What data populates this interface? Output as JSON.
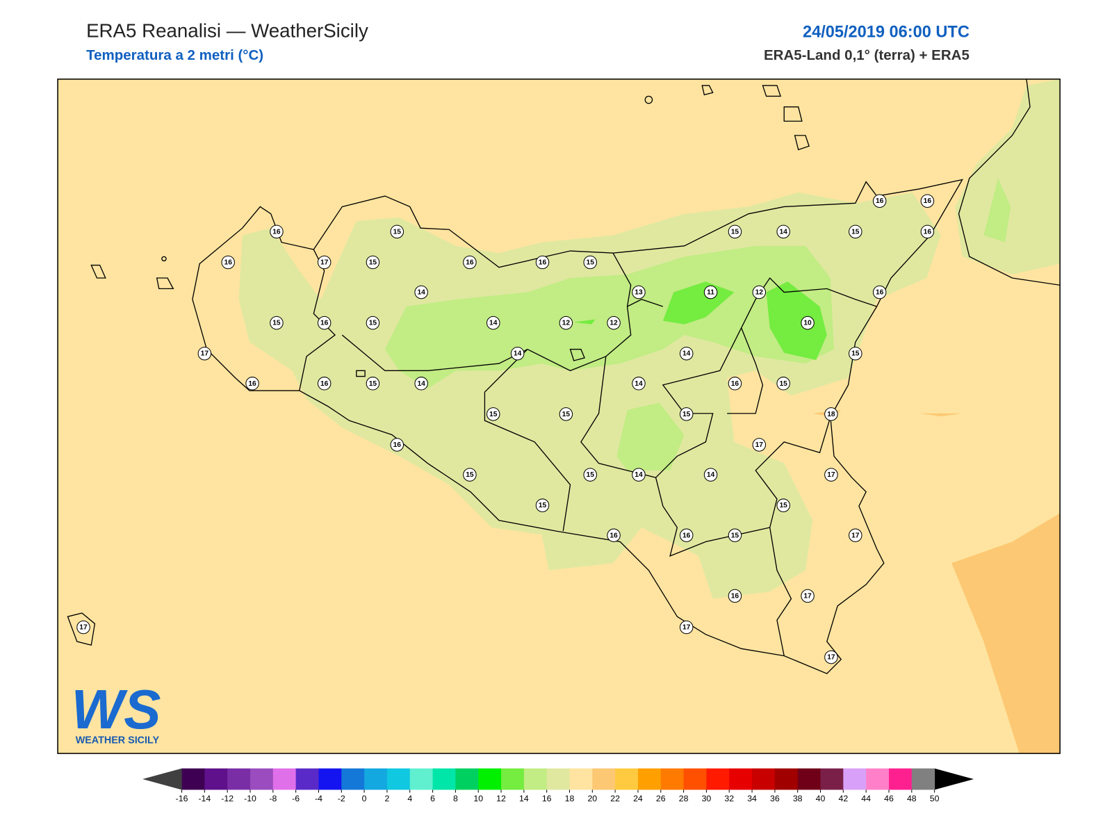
{
  "header": {
    "title": "ERA5 Reanalisi — WeatherSicily",
    "subtitle": "Temperatura a 2 metri (°C)",
    "datetime": "24/05/2019 06:00 UTC",
    "source": "ERA5-Land 0,1° (terra) + ERA5"
  },
  "stations": [
    16,
    15,
    16,
    17,
    15,
    16,
    16,
    15,
    14,
    15,
    16,
    15,
    14,
    12,
    12,
    13,
    11,
    12,
    10,
    16,
    16,
    15,
    14,
    15,
    16,
    16,
    17,
    14,
    14,
    15,
    16,
    16,
    15,
    14,
    14,
    16,
    15,
    15,
    15,
    15,
    18,
    16,
    17,
    15,
    15,
    14,
    14,
    17,
    15,
    15,
    16,
    16,
    15,
    17,
    16,
    17,
    17,
    17,
    17
  ],
  "colorbar": {
    "ticks": [
      -16,
      -14,
      -12,
      -10,
      -8,
      -6,
      -4,
      -2,
      0,
      2,
      4,
      6,
      8,
      10,
      12,
      14,
      16,
      18,
      20,
      22,
      24,
      26,
      28,
      30,
      32,
      34,
      36,
      38,
      40,
      42,
      44,
      46,
      48,
      50
    ],
    "colors": [
      "#3d0052",
      "#5e118a",
      "#7a2ea6",
      "#9b4cbe",
      "#e070ea",
      "#5a2ac8",
      "#1414f0",
      "#1478d8",
      "#14a8e0",
      "#10c8e0",
      "#60f0d0",
      "#00e6a8",
      "#00d060",
      "#00f000",
      "#74ec40",
      "#c2ec84",
      "#e0e8a0",
      "#fee4a0",
      "#fdc873",
      "#ffca40",
      "#ffa000",
      "#ff7a00",
      "#ff5000",
      "#ff1a00",
      "#e60000",
      "#c80000",
      "#a00000",
      "#700018",
      "#7a2048",
      "#d8a0f8",
      "#ff80c8",
      "#ff2090",
      "#808080"
    ],
    "under_color": "#404040",
    "over_color": "#000000"
  },
  "logo": {
    "letters": "WS",
    "name": "WEATHER SICILY"
  }
}
